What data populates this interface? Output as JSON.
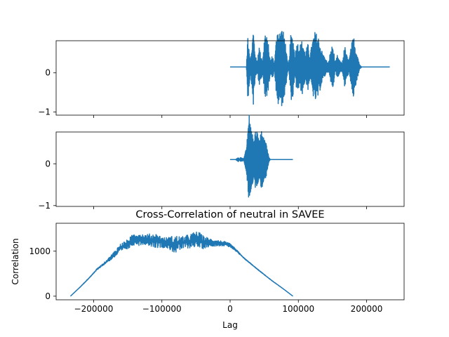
{
  "chart_data": [
    {
      "type": "line",
      "title": "",
      "xlabel": "",
      "ylabel": "",
      "xlim": [
        -255000,
        255000
      ],
      "ylim": [
        -1.08,
        0.82
      ],
      "yticks": [
        {
          "value": 0,
          "label": "0"
        },
        {
          "value": -1,
          "label": "−1"
        }
      ],
      "xticks": [
        -200000,
        -100000,
        0,
        100000,
        200000
      ],
      "show_xticklabels": false,
      "grid": false,
      "color": "#1f77b4",
      "series": [
        {
          "x_start": 0,
          "x_end": 234000,
          "baseline": 0.15,
          "envelope": [
            [
              0,
              0
            ],
            [
              24000,
              0
            ],
            [
              26000,
              0.9
            ],
            [
              28000,
              0.5
            ],
            [
              30000,
              0.15
            ],
            [
              34000,
              1.0
            ],
            [
              37000,
              0.3
            ],
            [
              40000,
              0.1
            ],
            [
              42000,
              0.6
            ],
            [
              45000,
              0.3
            ],
            [
              48000,
              0.2
            ],
            [
              51000,
              0.95
            ],
            [
              56000,
              0.6
            ],
            [
              59000,
              0.15
            ],
            [
              62000,
              0.3
            ],
            [
              65000,
              0.1
            ],
            [
              69000,
              1.05
            ],
            [
              72000,
              0.9
            ],
            [
              76000,
              1.0
            ],
            [
              80000,
              0.8
            ],
            [
              84000,
              0.15
            ],
            [
              86000,
              0.1
            ],
            [
              89000,
              0.85
            ],
            [
              92000,
              0.8
            ],
            [
              95000,
              0.3
            ],
            [
              98000,
              0.65
            ],
            [
              102000,
              0.55
            ],
            [
              106000,
              0.7
            ],
            [
              110000,
              0.35
            ],
            [
              114000,
              0.6
            ],
            [
              117000,
              0.3
            ],
            [
              121000,
              0.7
            ],
            [
              124000,
              0.9
            ],
            [
              127000,
              0.85
            ],
            [
              130000,
              0.75
            ],
            [
              133000,
              0.5
            ],
            [
              136000,
              0.35
            ],
            [
              140000,
              0.2
            ],
            [
              144000,
              0.1
            ],
            [
              148000,
              0.5
            ],
            [
              151000,
              0.55
            ],
            [
              154000,
              0.1
            ],
            [
              157000,
              0.3
            ],
            [
              161000,
              0.15
            ],
            [
              164000,
              0.1
            ],
            [
              168000,
              0.55
            ],
            [
              171000,
              0.3
            ],
            [
              174000,
              0.15
            ],
            [
              178000,
              0.6
            ],
            [
              181000,
              0.8
            ],
            [
              184000,
              0.5
            ],
            [
              187000,
              0.3
            ],
            [
              190000,
              0.05
            ],
            [
              193000,
              0.0
            ],
            [
              234000,
              0.0
            ]
          ]
        }
      ]
    },
    {
      "type": "line",
      "title": "",
      "xlabel": "",
      "ylabel": "",
      "xlim": [
        -255000,
        255000
      ],
      "ylim": [
        -1.02,
        0.76
      ],
      "yticks": [
        {
          "value": 0,
          "label": "0"
        },
        {
          "value": -1,
          "label": "−1"
        }
      ],
      "xticks": [
        -200000,
        -100000,
        0,
        100000,
        200000
      ],
      "show_xticklabels": false,
      "grid": false,
      "color": "#1f77b4",
      "series": [
        {
          "x_start": 0,
          "x_end": 92000,
          "baseline": 0.1,
          "envelope": [
            [
              0,
              0
            ],
            [
              8000,
              0
            ],
            [
              12000,
              0.05
            ],
            [
              14000,
              0.0
            ],
            [
              15000,
              0.05
            ],
            [
              20000,
              0.02
            ],
            [
              24000,
              0.3
            ],
            [
              26000,
              0.7
            ],
            [
              28000,
              1.1
            ],
            [
              29000,
              0.9
            ],
            [
              31000,
              0.7
            ],
            [
              33000,
              0.6
            ],
            [
              35000,
              0.4
            ],
            [
              37000,
              0.7
            ],
            [
              40000,
              0.65
            ],
            [
              42000,
              0.45
            ],
            [
              44000,
              0.55
            ],
            [
              46000,
              0.7
            ],
            [
              48000,
              0.6
            ],
            [
              50000,
              0.5
            ],
            [
              53000,
              0.4
            ],
            [
              55000,
              0.2
            ],
            [
              57000,
              0.05
            ],
            [
              59000,
              0.0
            ],
            [
              92000,
              0.0
            ]
          ]
        }
      ]
    },
    {
      "type": "line",
      "title": "Cross-Correlation of neutral in SAVEE",
      "xlabel": "Lag",
      "ylabel": "Correlation",
      "xlim": [
        -255000,
        255000
      ],
      "ylim": [
        -80,
        1620
      ],
      "yticks": [
        {
          "value": 1000,
          "label": "1000"
        },
        {
          "value": 0,
          "label": "0"
        }
      ],
      "xticks": [
        -200000,
        -100000,
        0,
        100000,
        200000
      ],
      "xticklabels": [
        "−200000",
        "−100000",
        "0",
        "100000",
        "200000"
      ],
      "show_xticklabels": true,
      "grid": false,
      "color": "#1f77b4",
      "series": [
        {
          "x_start": -234000,
          "x_end": 92000,
          "points": [
            [
              -234000,
              0
            ],
            [
              -220000,
              200
            ],
            [
              -205000,
              430
            ],
            [
              -195000,
              600
            ],
            [
              -185000,
              720
            ],
            [
              -175000,
              850
            ],
            [
              -165000,
              1000
            ],
            [
              -160000,
              1080
            ],
            [
              -150000,
              1150
            ],
            [
              -140000,
              1280
            ],
            [
              -125000,
              1260
            ],
            [
              -110000,
              1240
            ],
            [
              -100000,
              1200
            ],
            [
              -90000,
              1180
            ],
            [
              -80000,
              1150
            ],
            [
              -60000,
              1220
            ],
            [
              -50000,
              1270
            ],
            [
              -40000,
              1200
            ],
            [
              -25000,
              1190
            ],
            [
              -10000,
              1170
            ],
            [
              0,
              1130
            ],
            [
              10000,
              1000
            ],
            [
              20000,
              850
            ],
            [
              40000,
              600
            ],
            [
              60000,
              360
            ],
            [
              80000,
              140
            ],
            [
              92000,
              0
            ]
          ],
          "noise_envelope": [
            [
              -234000,
              0
            ],
            [
              -200000,
              10
            ],
            [
              -180000,
              30
            ],
            [
              -165000,
              90
            ],
            [
              -150000,
              110
            ],
            [
              -135000,
              150
            ],
            [
              -125000,
              110
            ],
            [
              -110000,
              160
            ],
            [
              -95000,
              110
            ],
            [
              -80000,
              200
            ],
            [
              -70000,
              140
            ],
            [
              -55000,
              160
            ],
            [
              -45000,
              180
            ],
            [
              -30000,
              90
            ],
            [
              -15000,
              60
            ],
            [
              0,
              40
            ],
            [
              20000,
              10
            ],
            [
              92000,
              0
            ]
          ]
        }
      ]
    }
  ]
}
